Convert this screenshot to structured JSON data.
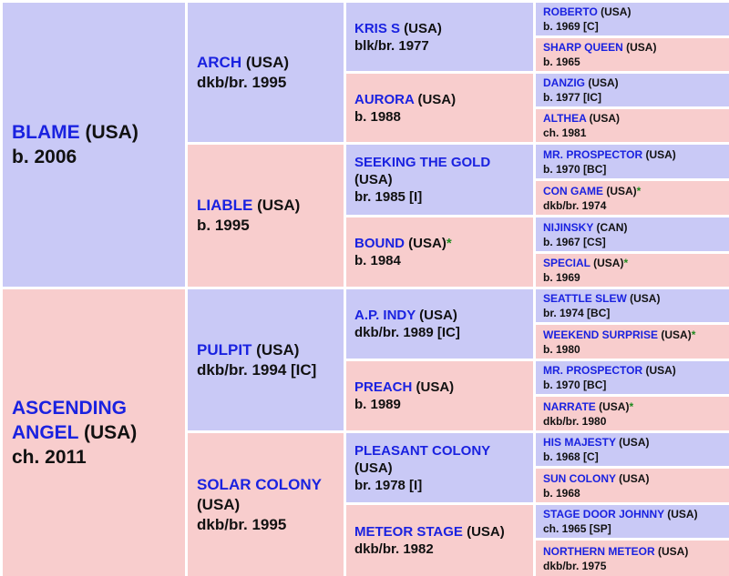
{
  "pedigree": [
    {
      "name": "BLAME",
      "country": " (USA)",
      "star": "",
      "info": "b. 2006"
    },
    {
      "name": "ASCENDING ANGEL",
      "country": " (USA)",
      "star": "",
      "info": "ch. 2011"
    },
    {
      "name": "ARCH",
      "country": " (USA)",
      "star": "",
      "info": "dkb/br. 1995"
    },
    {
      "name": "LIABLE",
      "country": " (USA)",
      "star": "",
      "info": "b. 1995"
    },
    {
      "name": "PULPIT",
      "country": " (USA)",
      "star": "",
      "info": "dkb/br. 1994 [IC]"
    },
    {
      "name": "SOLAR COLONY",
      "country": " (USA)",
      "star": "",
      "info": "dkb/br. 1995"
    },
    {
      "name": "KRIS S",
      "country": " (USA)",
      "star": "",
      "info": "blk/br. 1977"
    },
    {
      "name": "AURORA",
      "country": " (USA)",
      "star": "",
      "info": "b. 1988"
    },
    {
      "name": "SEEKING THE GOLD",
      "country": " (USA)",
      "star": "",
      "info": "br. 1985 [I]"
    },
    {
      "name": "BOUND",
      "country": " (USA)",
      "star": "*",
      "info": "b. 1984"
    },
    {
      "name": "A.P. INDY",
      "country": " (USA)",
      "star": "",
      "info": "dkb/br. 1989 [IC]"
    },
    {
      "name": "PREACH",
      "country": " (USA)",
      "star": "",
      "info": "b. 1989"
    },
    {
      "name": "PLEASANT COLONY",
      "country": " (USA)",
      "star": "",
      "info": "br. 1978 [I]"
    },
    {
      "name": "METEOR STAGE",
      "country": " (USA)",
      "star": "",
      "info": "dkb/br. 1982"
    },
    {
      "name": "ROBERTO",
      "country": " (USA)",
      "star": "",
      "info": "b. 1969 [C]"
    },
    {
      "name": "SHARP QUEEN",
      "country": " (USA)",
      "star": "",
      "info": "b. 1965"
    },
    {
      "name": "DANZIG",
      "country": " (USA)",
      "star": "",
      "info": "b. 1977 [IC]"
    },
    {
      "name": "ALTHEA",
      "country": " (USA)",
      "star": "",
      "info": "ch. 1981"
    },
    {
      "name": "MR. PROSPECTOR",
      "country": " (USA)",
      "star": "",
      "info": "b. 1970 [BC]"
    },
    {
      "name": "CON GAME",
      "country": " (USA)",
      "star": "*",
      "info": "dkb/br. 1974"
    },
    {
      "name": "NIJINSKY",
      "country": " (CAN)",
      "star": "",
      "info": "b. 1967 [CS]"
    },
    {
      "name": "SPECIAL",
      "country": " (USA)",
      "star": "*",
      "info": "b. 1969"
    },
    {
      "name": "SEATTLE SLEW",
      "country": " (USA)",
      "star": "",
      "info": "br. 1974 [BC]"
    },
    {
      "name": "WEEKEND SURPRISE",
      "country": " (USA)",
      "star": "*",
      "info": "b. 1980"
    },
    {
      "name": "MR. PROSPECTOR",
      "country": " (USA)",
      "star": "",
      "info": "b. 1970 [BC]"
    },
    {
      "name": "NARRATE",
      "country": " (USA)",
      "star": "*",
      "info": "dkb/br. 1980"
    },
    {
      "name": "HIS MAJESTY",
      "country": " (USA)",
      "star": "",
      "info": "b. 1968 [C]"
    },
    {
      "name": "SUN COLONY",
      "country": " (USA)",
      "star": "",
      "info": "b. 1968"
    },
    {
      "name": "STAGE DOOR JOHNNY",
      "country": " (USA)",
      "star": "",
      "info": "ch. 1965 [SP]"
    },
    {
      "name": "NORTHERN METEOR",
      "country": " (USA)",
      "star": "",
      "info": "dkb/br. 1975"
    }
  ]
}
